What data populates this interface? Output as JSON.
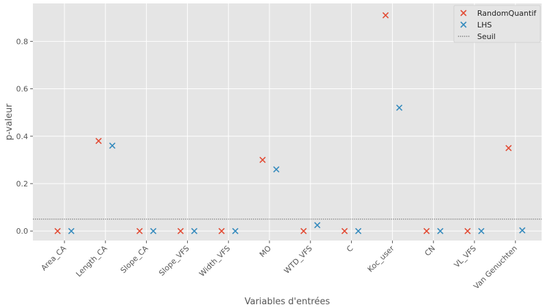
{
  "chart_data": {
    "type": "scatter",
    "title": "",
    "xlabel": "Variables d'entrées",
    "ylabel": "p-valeur",
    "ylim": [
      -0.04,
      0.96
    ],
    "yticks": [
      0.0,
      0.2,
      0.4,
      0.6,
      0.8
    ],
    "ytick_labels": [
      "0.0",
      "0.2",
      "0.4",
      "0.6",
      "0.8"
    ],
    "grid": true,
    "legend_position": "top-right",
    "categories": [
      "Area_CA",
      "Length_CA",
      "Slope_CA",
      "Slope_VFS",
      "Width_VFS",
      "MO",
      "WTD_VFS",
      "C",
      "Koc_user",
      "CN",
      "VL_VFS",
      "Van Genuchten"
    ],
    "series": [
      {
        "name": "RandomQuantif",
        "color": "#E24A33",
        "marker": "x",
        "values": [
          0.0,
          0.38,
          0.0,
          0.0,
          0.0,
          0.3,
          0.0,
          0.0,
          0.91,
          0.0,
          0.0,
          0.35
        ]
      },
      {
        "name": "LHS",
        "color": "#348ABD",
        "marker": "x",
        "values": [
          0.0,
          0.36,
          0.0,
          0.0,
          0.0,
          0.26,
          0.025,
          0.0,
          0.52,
          0.0,
          0.0,
          0.003
        ]
      }
    ],
    "threshold": {
      "name": "Seuil",
      "value": 0.05,
      "color": "#555555",
      "style": "dotted"
    }
  }
}
